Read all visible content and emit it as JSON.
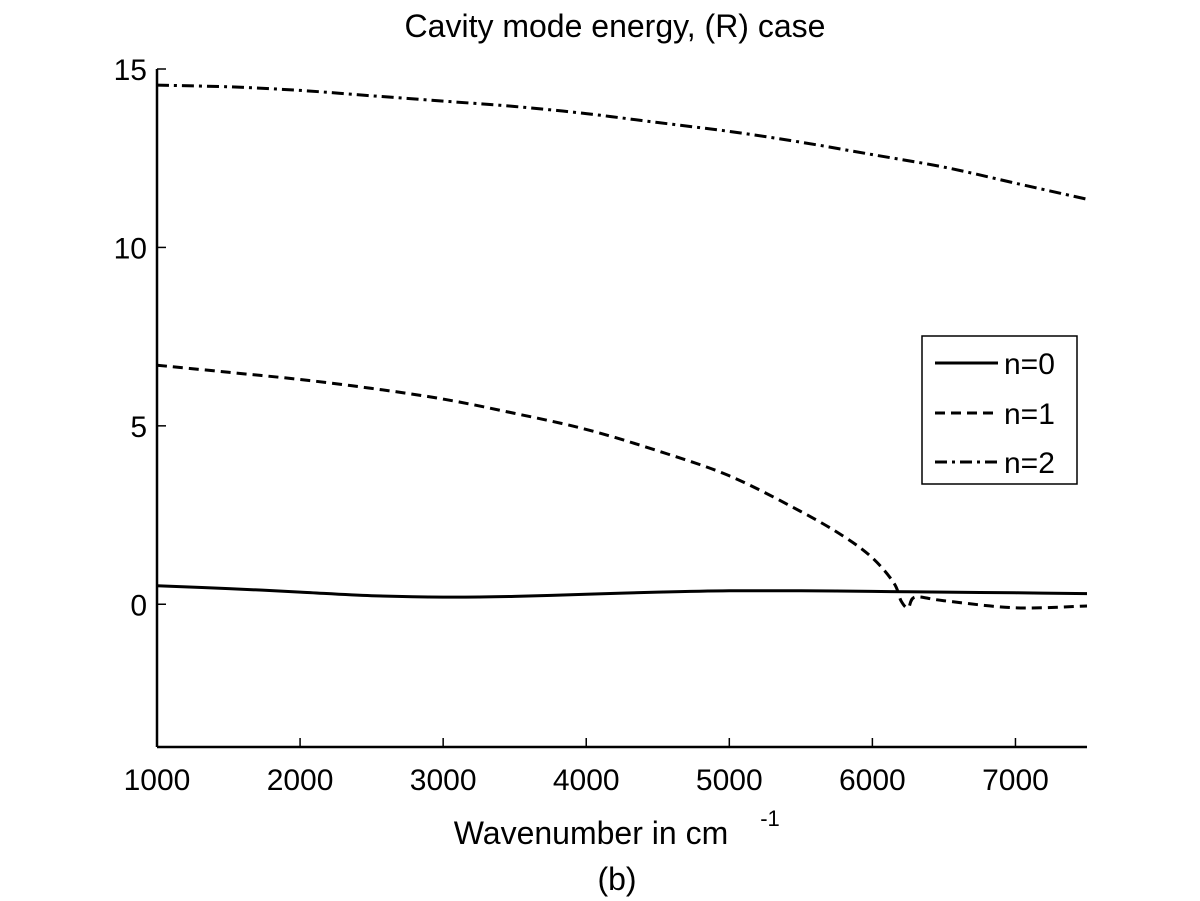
{
  "chart_data": {
    "type": "line",
    "title": "Cavity mode energy, (R) case",
    "xlabel": "Wavenumber in cm",
    "xlabel_superscript": "-1",
    "caption": "(b)",
    "xlim": [
      1000,
      7500
    ],
    "ylim": [
      -4,
      15
    ],
    "xticks": [
      1000,
      2000,
      3000,
      4000,
      5000,
      6000,
      7000
    ],
    "yticks": [
      0,
      5,
      10,
      15
    ],
    "legend_position": "right",
    "series": [
      {
        "name": "n=0",
        "style": "solid",
        "x": [
          1000,
          1500,
          2000,
          2500,
          3000,
          3500,
          4000,
          4500,
          5000,
          5500,
          6000,
          6500,
          7000,
          7500
        ],
        "y": [
          0.52,
          0.44,
          0.34,
          0.24,
          0.2,
          0.22,
          0.28,
          0.34,
          0.38,
          0.38,
          0.36,
          0.34,
          0.32,
          0.3
        ]
      },
      {
        "name": "n=1",
        "style": "dashed",
        "x": [
          1000,
          1500,
          2000,
          2500,
          3000,
          3500,
          4000,
          4500,
          5000,
          5500,
          5800,
          6000,
          6150,
          6200,
          6250,
          6300,
          6500,
          7000,
          7500
        ],
        "y": [
          6.7,
          6.5,
          6.3,
          6.05,
          5.75,
          5.35,
          4.9,
          4.3,
          3.6,
          2.6,
          1.9,
          1.3,
          0.6,
          0.1,
          -0.1,
          0.2,
          0.1,
          -0.1,
          -0.05
        ]
      },
      {
        "name": "n=2",
        "style": "dash-dot",
        "x": [
          1000,
          1500,
          2000,
          2500,
          3000,
          3500,
          4000,
          4500,
          5000,
          5500,
          6000,
          6500,
          7000,
          7500
        ],
        "y": [
          14.55,
          14.5,
          14.4,
          14.25,
          14.1,
          13.95,
          13.75,
          13.5,
          13.25,
          12.95,
          12.6,
          12.25,
          11.8,
          11.35
        ]
      }
    ]
  }
}
